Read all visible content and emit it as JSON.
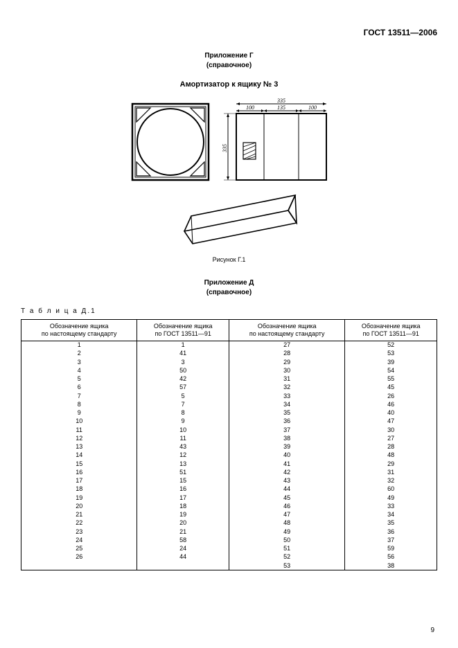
{
  "doc_id": "ГОСТ 13511—2006",
  "appendix_g": {
    "title": "Приложение Г",
    "note": "(справочное)"
  },
  "fig_title": "Амортизатор к ящику № 3",
  "fig_caption": "Рисунок Г.1",
  "appendix_d": {
    "title": "Приложение Д",
    "note": "(справочное)"
  },
  "table_label": "Т а б л и ц а  Д.1",
  "page_number": "9",
  "dims": {
    "a": "335",
    "a1": "100",
    "a2": "135",
    "a3": "100",
    "b": "335"
  },
  "table": {
    "headers": [
      "Обозначение ящика\nпо настоящему стандарту",
      "Обозначение ящика\nпо ГОСТ 13511—91",
      "Обозначение ящика\nпо настоящему стандарту",
      "Обозначение ящика\nпо ГОСТ 13511—91"
    ],
    "left": [
      [
        "1",
        "1"
      ],
      [
        "2",
        "41"
      ],
      [
        "3",
        "3"
      ],
      [
        "4",
        "50"
      ],
      [
        "5",
        "42"
      ],
      [
        "6",
        "57"
      ],
      [
        "7",
        "5"
      ],
      [
        "8",
        "7"
      ],
      [
        "9",
        "8"
      ],
      [
        "10",
        "9"
      ],
      [
        "11",
        "10"
      ],
      [
        "12",
        "11"
      ],
      [
        "13",
        "43"
      ],
      [
        "14",
        "12"
      ],
      [
        "15",
        "13"
      ],
      [
        "16",
        "51"
      ],
      [
        "17",
        "15"
      ],
      [
        "18",
        "16"
      ],
      [
        "19",
        "17"
      ],
      [
        "20",
        "18"
      ],
      [
        "21",
        "19"
      ],
      [
        "22",
        "20"
      ],
      [
        "23",
        "21"
      ],
      [
        "24",
        "58"
      ],
      [
        "25",
        "24"
      ],
      [
        "26",
        "44"
      ]
    ],
    "right": [
      [
        "27",
        "52"
      ],
      [
        "28",
        "53"
      ],
      [
        "29",
        "39"
      ],
      [
        "30",
        "54"
      ],
      [
        "31",
        "55"
      ],
      [
        "32",
        "45"
      ],
      [
        "33",
        "26"
      ],
      [
        "34",
        "46"
      ],
      [
        "35",
        "40"
      ],
      [
        "36",
        "47"
      ],
      [
        "37",
        "30"
      ],
      [
        "38",
        "27"
      ],
      [
        "39",
        "28"
      ],
      [
        "40",
        "48"
      ],
      [
        "41",
        "29"
      ],
      [
        "42",
        "31"
      ],
      [
        "43",
        "32"
      ],
      [
        "44",
        "60"
      ],
      [
        "45",
        "49"
      ],
      [
        "46",
        "33"
      ],
      [
        "47",
        "34"
      ],
      [
        "48",
        "35"
      ],
      [
        "49",
        "36"
      ],
      [
        "50",
        "37"
      ],
      [
        "51",
        "59"
      ],
      [
        "52",
        "56"
      ],
      [
        "53",
        "38"
      ]
    ]
  },
  "colors": {
    "line": "#000000",
    "hatch": "#000000",
    "bg": "#ffffff"
  }
}
